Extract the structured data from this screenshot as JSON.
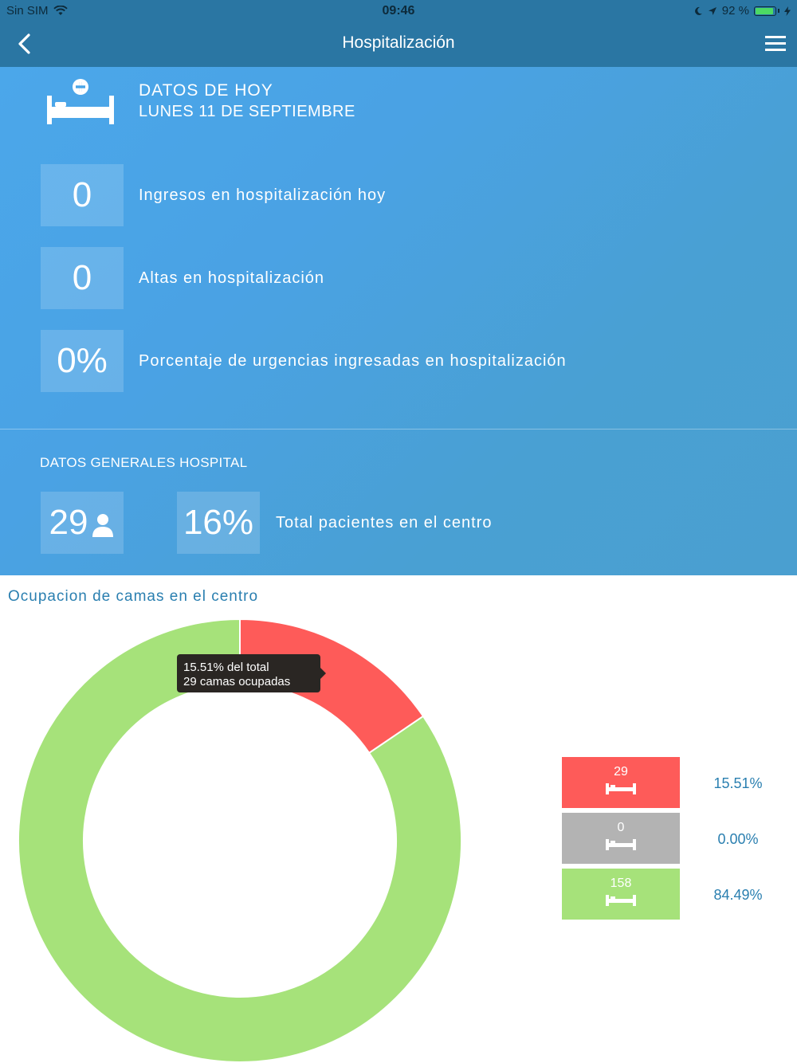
{
  "status_bar": {
    "carrier": "Sin SIM",
    "time": "09:46",
    "battery": "92 %",
    "battery_level": 0.92
  },
  "nav": {
    "title": "Hospitalización"
  },
  "today": {
    "title": "DATOS DE HOY",
    "date": "LUNES 11 DE SEPTIEMBRE",
    "stats": [
      {
        "value": "0",
        "label": "Ingresos en hospitalización hoy"
      },
      {
        "value": "0",
        "label": "Altas en hospitalización"
      },
      {
        "value": "0%",
        "label": "Porcentaje de urgencias ingresadas en hospitalización"
      }
    ]
  },
  "general": {
    "title": "DATOS GENERALES HOSPITAL",
    "patients": "29",
    "percent": "16%",
    "label": "Total pacientes en el centro"
  },
  "chart_section": {
    "title": "Ocupacion de camas en el centro",
    "tooltip_line1": "15.51% del total",
    "tooltip_line2": "29 camas ocupadas"
  },
  "chart_data": {
    "type": "pie",
    "donut": true,
    "slices": [
      {
        "label": "29",
        "value": 29,
        "percent": "15.51%",
        "color": "#fe5b59"
      },
      {
        "label": "0",
        "value": 0,
        "percent": "0.00%",
        "color": "#b3b3b3"
      },
      {
        "label": "158",
        "value": 158,
        "percent": "84.49%",
        "color": "#a6e27a"
      }
    ]
  },
  "colors": {
    "header": "#2a76a3",
    "accent_text": "#2a7fb0"
  }
}
